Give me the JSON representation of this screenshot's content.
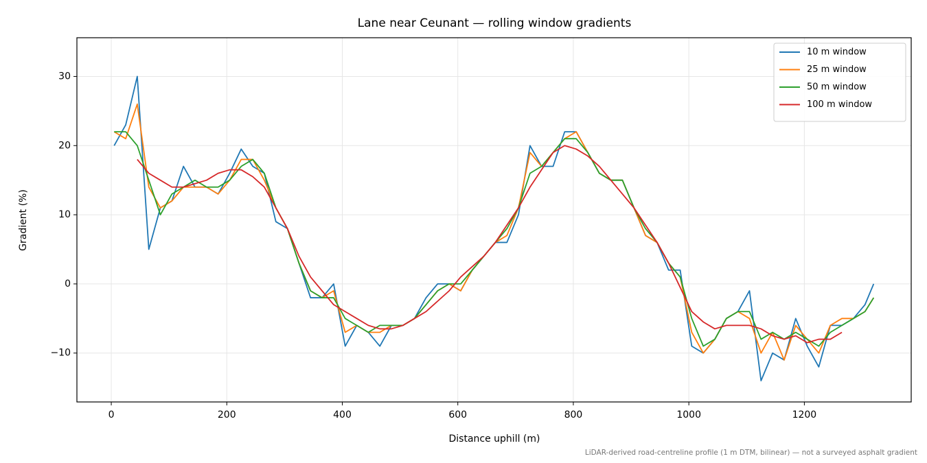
{
  "chart_data": {
    "type": "line",
    "title": "Lane near Ceunant — rolling window gradients",
    "x_label": "Distance uphill (m)",
    "y_label": "Gradient (%)",
    "footnote": "LiDAR-derived road-centreline profile (1 m DTM, bilinear) — not a surveyed asphalt gradient",
    "grid": true,
    "legend": "upper right",
    "xlim": [
      -59.5,
      1385
    ],
    "ylim": [
      -17.07,
      35.6
    ],
    "xticks": [
      0,
      200,
      400,
      600,
      800,
      1000,
      1200
    ],
    "yticks": [
      {
        "value": -10,
        "label": "−10"
      },
      0,
      10,
      20,
      30
    ],
    "x": [
      5,
      25,
      45,
      65,
      85,
      105,
      125,
      145,
      165,
      185,
      205,
      225,
      245,
      265,
      285,
      305,
      325,
      345,
      365,
      385,
      405,
      425,
      445,
      465,
      485,
      505,
      525,
      545,
      565,
      585,
      605,
      625,
      645,
      665,
      685,
      705,
      725,
      745,
      765,
      785,
      805,
      825,
      845,
      865,
      885,
      905,
      925,
      945,
      965,
      985,
      1005,
      1025,
      1045,
      1065,
      1085,
      1105,
      1125,
      1145,
      1165,
      1185,
      1205,
      1225,
      1245,
      1265,
      1285,
      1305,
      1320
    ],
    "series": [
      {
        "name": "10 m window",
        "color": "#1f77b4",
        "values": [
          20,
          23,
          30,
          5,
          11,
          12,
          17,
          14,
          14,
          13,
          16,
          19.5,
          17,
          16,
          9,
          8,
          3,
          -2,
          -2,
          0,
          -9,
          -6,
          -7,
          -9,
          -6,
          -6,
          -5,
          -2,
          0,
          0,
          -1,
          2,
          4,
          6,
          6,
          10,
          20,
          17,
          17,
          22,
          22,
          19,
          16,
          15,
          15,
          11,
          7,
          6,
          2,
          2,
          -9,
          -10,
          -8,
          -5,
          -4,
          -1,
          -14,
          -10,
          -11,
          -5,
          -9,
          -12,
          -6,
          -6,
          -5,
          -3,
          0
        ]
      },
      {
        "name": "25 m window",
        "color": "#ff7f0e",
        "values": [
          22,
          21,
          26,
          14,
          11,
          12,
          14,
          14,
          14,
          13,
          15,
          18,
          18,
          15,
          11,
          8,
          3,
          -1,
          -2,
          -1,
          -7,
          -6,
          -7,
          -7,
          -6,
          -6,
          -5,
          -3,
          -1,
          0,
          -1,
          2,
          4,
          6,
          7,
          11,
          19,
          17,
          19,
          21,
          22,
          19,
          16,
          15,
          15,
          11,
          7,
          6,
          3,
          1,
          -7,
          -10,
          -8,
          -5,
          -4,
          -5,
          -10,
          -7,
          -11,
          -6,
          -8,
          -10,
          -6,
          -5,
          -5,
          -4,
          -2
        ]
      },
      {
        "name": "50 m window",
        "color": "#2ca02c",
        "values": [
          22,
          22,
          20,
          15,
          10,
          13,
          14,
          15,
          14,
          14,
          15,
          17,
          18,
          16,
          11,
          8,
          3,
          -1,
          -2,
          -2,
          -5,
          -6,
          -7,
          -6,
          -6,
          -6,
          -5,
          -3,
          -1,
          0,
          0,
          2,
          4,
          6,
          8,
          11,
          16,
          17,
          19,
          21,
          21,
          19,
          16,
          15,
          15,
          11,
          8,
          6,
          3,
          1,
          -5,
          -9,
          -8,
          -5,
          -4,
          -4,
          -8,
          -7,
          -8,
          -7,
          -8,
          -9,
          -7,
          -6,
          -5,
          -4,
          -2
        ]
      },
      {
        "name": "100 m window",
        "color": "#d62728",
        "values": [
          null,
          null,
          18,
          16,
          15,
          14,
          14,
          14.5,
          15,
          16,
          16.5,
          16.5,
          15.5,
          14,
          11,
          8,
          4,
          1,
          -1,
          -3,
          -4,
          -5,
          -6,
          -6.5,
          -6.5,
          -6,
          -5,
          -4,
          -2.5,
          -1,
          1,
          2.5,
          4,
          6,
          8.5,
          11,
          14,
          16.5,
          19,
          20,
          19.5,
          18.5,
          17,
          15,
          13,
          11,
          8.5,
          6,
          3,
          -0.5,
          -4,
          -5.5,
          -6.5,
          -6,
          -6,
          -6,
          -6.5,
          -7.5,
          -8,
          -7.5,
          -8.5,
          -8,
          -8,
          -7,
          null,
          null,
          null
        ]
      }
    ]
  }
}
